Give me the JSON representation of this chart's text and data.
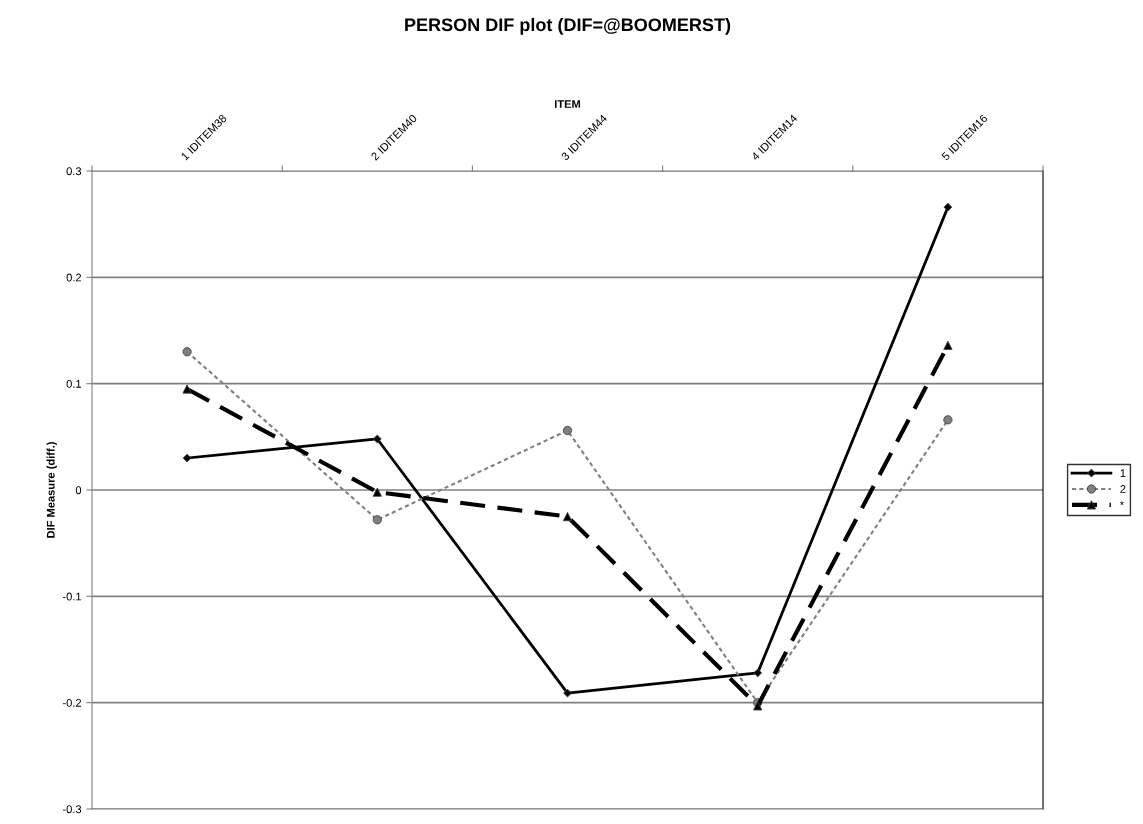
{
  "chart_data": {
    "type": "line",
    "title": "PERSON DIF plot (DIF=@BOOMERST)",
    "xlabel": "ITEM",
    "ylabel": "DIF Measure (diff.)",
    "categories": [
      "1 IDITEM38",
      "2 IDITEM40",
      "3 IDITEM44",
      "4 IDITEM14",
      "5 IDITEM16"
    ],
    "series": [
      {
        "name": "1",
        "color": "#000000",
        "marker": "diamond",
        "line_style": "solid",
        "values": [
          0.03,
          0.048,
          -0.191,
          -0.172,
          0.266
        ]
      },
      {
        "name": "2",
        "color": "#7f7f7f",
        "marker": "circle",
        "line_style": "dotted",
        "values": [
          0.13,
          -0.028,
          0.056,
          -0.2,
          0.066
        ]
      },
      {
        "name": "*",
        "color": "#000000",
        "marker": "triangle",
        "line_style": "dashed",
        "values": [
          0.095,
          -0.002,
          -0.025,
          -0.203,
          0.136
        ]
      }
    ],
    "ylim": [
      -0.3,
      0.3
    ],
    "yticks": [
      -0.3,
      -0.2,
      -0.1,
      0,
      0.1,
      0.2,
      0.3
    ],
    "grid": "y",
    "legend": "right"
  }
}
